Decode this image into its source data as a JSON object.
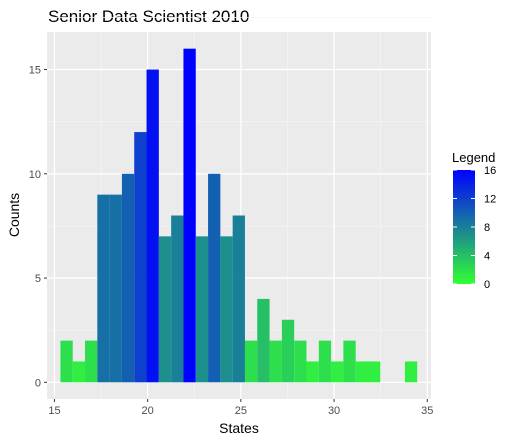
{
  "chart_data": {
    "type": "bar",
    "title": "Senior Data Scientist 2010",
    "xlabel": "States",
    "ylabel": "Counts",
    "xlim": [
      14.6,
      35.2
    ],
    "ylim": [
      -0.8,
      16.8
    ],
    "xticks": [
      15,
      20,
      25,
      30,
      35
    ],
    "yticks": [
      0,
      5,
      10,
      15
    ],
    "bin_width": 0.66,
    "x": [
      15.65,
      16.31,
      16.97,
      17.63,
      18.29,
      18.95,
      19.61,
      20.27,
      20.93,
      21.59,
      22.25,
      22.91,
      23.57,
      24.23,
      24.89,
      25.55,
      26.21,
      26.87,
      27.53,
      28.19,
      28.85,
      29.51,
      30.17,
      30.83,
      31.49,
      32.15,
      32.81,
      33.47,
      34.13
    ],
    "values": [
      2,
      1,
      2,
      9,
      9,
      10,
      12,
      15,
      7,
      8,
      16,
      7,
      10,
      7,
      8,
      2,
      4,
      2,
      3,
      2,
      1,
      2,
      1,
      2,
      1,
      1,
      0,
      0,
      1
    ],
    "legend": {
      "title": "Legend",
      "labels": [
        "16",
        "12",
        "8",
        "4",
        "0"
      ],
      "values": [
        16,
        12,
        8,
        4,
        0
      ],
      "low_color": "#33FF33",
      "high_color": "#0000FF"
    }
  }
}
